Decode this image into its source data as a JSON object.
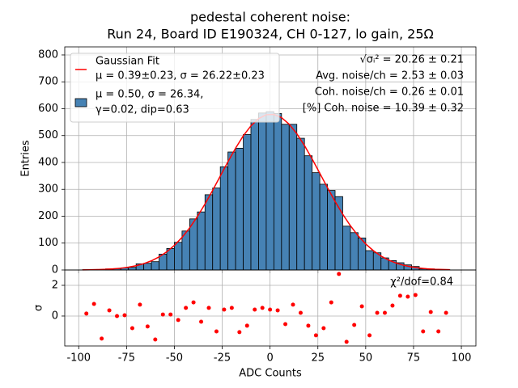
{
  "chart_data": [
    {
      "type": "histogram",
      "title": [
        "pedestal coherent noise:",
        "Run 24, Board ID E190324, CH 0-127, lo gain, 25Ω"
      ],
      "ylabel": "Entries",
      "bins": [
        -98,
        -94,
        -90,
        -86,
        -82,
        -78,
        -74,
        -70,
        -66,
        -62,
        -58,
        -54,
        -50,
        -46,
        -42,
        -38,
        -34,
        -30,
        -26,
        -22,
        -18,
        -14,
        -10,
        -6,
        -2,
        2,
        6,
        10,
        14,
        18,
        22,
        26,
        30,
        34,
        38,
        42,
        46,
        50,
        54,
        58,
        62,
        66,
        70,
        74,
        78,
        82,
        86,
        90,
        94
      ],
      "series": [
        {
          "name": [
            "μ = 0.50, σ = 26.34,",
            "γ=0.02, dip=0.63"
          ],
          "color": "#4682b4",
          "edgecolor": "#000000",
          "values": [
            1,
            2,
            0,
            4,
            5,
            8,
            10,
            23,
            25,
            31,
            59,
            80,
            103,
            145,
            190,
            216,
            280,
            305,
            384,
            439,
            453,
            504,
            560,
            584,
            589,
            582,
            542,
            542,
            490,
            425,
            362,
            319,
            296,
            273,
            163,
            139,
            119,
            72,
            64,
            45,
            35,
            27,
            19,
            13,
            4,
            4,
            1,
            1
          ]
        }
      ],
      "fit": {
        "name": [
          "Gaussian Fit",
          "μ = 0.39±0.23, σ = 26.22±0.23"
        ],
        "color": "#ff0000",
        "x": [
          -98,
          -94,
          -90,
          -86,
          -82,
          -78,
          -74,
          -70,
          -66,
          -62,
          -58,
          -54,
          -50,
          -46,
          -42,
          -38,
          -34,
          -30,
          -26,
          -22,
          -18,
          -14,
          -10,
          -6,
          -2,
          2,
          6,
          10,
          14,
          18,
          22,
          26,
          30,
          34,
          38,
          42,
          46,
          50,
          54,
          58,
          62,
          66,
          70,
          74,
          78,
          82,
          86,
          90,
          94
        ],
        "values": [
          0.5,
          0.9,
          1.5,
          2.5,
          4.2,
          6.6,
          10.4,
          15.8,
          23.5,
          34.2,
          48.6,
          67.5,
          91.5,
          121.2,
          157,
          198.6,
          245.4,
          296.3,
          349.5,
          402.8,
          453.5,
          498.9,
          536.2,
          563,
          577.6,
          578.9,
          566.9,
          542.3,
          507,
          462.9,
          413,
          359.9,
          306.5,
          255,
          207.3,
          164.7,
          127.7,
          96.8,
          71.8,
          51.9,
          36.7,
          25.3,
          17.1,
          11.3,
          7.3,
          4.6,
          2.8,
          1.7,
          1.0
        ]
      },
      "annotations": [
        "√σᵢ² = 20.26 ± 0.21",
        "Avg. noise/ch = 2.53 ± 0.03",
        "Coh. noise/ch = 0.26 ± 0.01",
        "[%] Coh. noise = 10.39  ± 0.32"
      ],
      "xlim": [
        -107.3,
        107.6
      ],
      "xticks": [
        -100,
        -75,
        -50,
        -25,
        0,
        25,
        50,
        75,
        100
      ],
      "ylim": [
        0,
        830
      ],
      "yticks": [
        0,
        100,
        200,
        300,
        400,
        500,
        600,
        700,
        800
      ],
      "grid": true,
      "legend": "upper left"
    },
    {
      "type": "scatter",
      "xlabel": "ADC Counts",
      "ylabel": "σ",
      "annotation": "χ²/dof=0.84",
      "color": "#ff0000",
      "x": [
        -96,
        -92,
        -88,
        -84,
        -80,
        -76,
        -72,
        -68,
        -64,
        -60,
        -56,
        -52,
        -48,
        -44,
        -40,
        -36,
        -32,
        -28,
        -24,
        -20,
        -16,
        -12,
        -8,
        -4,
        0,
        4,
        8,
        12,
        16,
        20,
        24,
        28,
        32,
        36,
        40,
        44,
        48,
        52,
        56,
        60,
        64,
        68,
        72,
        76,
        80,
        84,
        88,
        92
      ],
      "values": [
        0.16,
        0.79,
        -1.47,
        0.37,
        0,
        0.05,
        -0.79,
        0.74,
        -0.68,
        -1.53,
        0.1,
        0.1,
        -0.26,
        0.53,
        0.89,
        -0.37,
        0.53,
        -1,
        0.42,
        0.53,
        -1.05,
        -0.63,
        0.42,
        0.53,
        0.42,
        0.37,
        -0.53,
        0.74,
        0.21,
        -0.63,
        -1.26,
        -0.79,
        0.89,
        2.74,
        -1.68,
        -0.58,
        0.63,
        -1.26,
        0.21,
        0.21,
        0.68,
        1.32,
        1.26,
        1.37,
        -1,
        0.26,
        -1,
        0.21
      ],
      "xlim": [
        -107.3,
        107.6
      ],
      "xticks": [
        -100,
        -75,
        -50,
        -25,
        0,
        25,
        50,
        75,
        100
      ],
      "ylim": [
        -1.95,
        3
      ],
      "yticks": [
        0,
        2
      ],
      "grid": true
    }
  ]
}
